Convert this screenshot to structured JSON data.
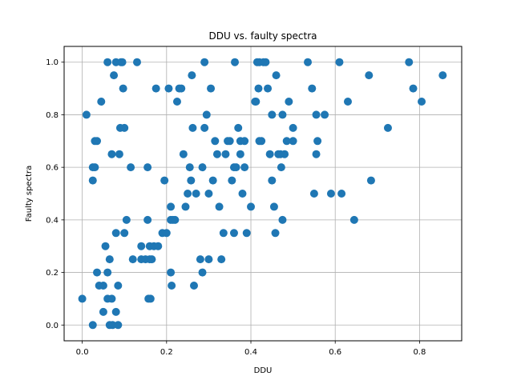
{
  "chart_data": {
    "type": "scatter",
    "title": "DDU vs. faulty spectra",
    "xlabel": "DDU",
    "ylabel": "Faulty spectra",
    "xlim": [
      -0.043,
      0.9
    ],
    "ylim": [
      -0.06,
      1.06
    ],
    "xticks": [
      0.0,
      0.2,
      0.4,
      0.6,
      0.8
    ],
    "yticks": [
      0.0,
      0.2,
      0.4,
      0.6,
      0.8,
      1.0
    ],
    "xtick_labels": [
      "0.0",
      "0.2",
      "0.4",
      "0.6",
      "0.8"
    ],
    "ytick_labels": [
      "0.0",
      "0.2",
      "0.4",
      "0.6",
      "0.8",
      "1.0"
    ],
    "grid": true,
    "marker_color": "#1f77b4",
    "points": [
      [
        0.0,
        0.1
      ],
      [
        0.01,
        0.8
      ],
      [
        0.025,
        0.0
      ],
      [
        0.025,
        0.55
      ],
      [
        0.025,
        0.6
      ],
      [
        0.03,
        0.6
      ],
      [
        0.03,
        0.7
      ],
      [
        0.035,
        0.7
      ],
      [
        0.035,
        0.2
      ],
      [
        0.04,
        0.15
      ],
      [
        0.045,
        0.85
      ],
      [
        0.05,
        0.15
      ],
      [
        0.05,
        0.05
      ],
      [
        0.055,
        0.3
      ],
      [
        0.06,
        0.2
      ],
      [
        0.06,
        0.1
      ],
      [
        0.06,
        1.0
      ],
      [
        0.065,
        0.0
      ],
      [
        0.065,
        0.25
      ],
      [
        0.07,
        0.65
      ],
      [
        0.07,
        0.1
      ],
      [
        0.072,
        0.0
      ],
      [
        0.075,
        0.95
      ],
      [
        0.08,
        0.35
      ],
      [
        0.08,
        0.05
      ],
      [
        0.08,
        1.0
      ],
      [
        0.085,
        0.0
      ],
      [
        0.085,
        0.15
      ],
      [
        0.088,
        0.65
      ],
      [
        0.09,
        0.75
      ],
      [
        0.092,
        1.0
      ],
      [
        0.095,
        1.0
      ],
      [
        0.097,
        0.9
      ],
      [
        0.1,
        0.75
      ],
      [
        0.1,
        0.35
      ],
      [
        0.105,
        0.4
      ],
      [
        0.115,
        0.6
      ],
      [
        0.12,
        0.25
      ],
      [
        0.13,
        1.0
      ],
      [
        0.14,
        0.25
      ],
      [
        0.14,
        0.3
      ],
      [
        0.15,
        0.25
      ],
      [
        0.155,
        0.6
      ],
      [
        0.155,
        0.4
      ],
      [
        0.157,
        0.1
      ],
      [
        0.16,
        0.3
      ],
      [
        0.16,
        0.25
      ],
      [
        0.162,
        0.1
      ],
      [
        0.165,
        0.25
      ],
      [
        0.17,
        0.3
      ],
      [
        0.175,
        0.9
      ],
      [
        0.18,
        0.3
      ],
      [
        0.19,
        0.35
      ],
      [
        0.195,
        0.55
      ],
      [
        0.2,
        0.35
      ],
      [
        0.205,
        0.9
      ],
      [
        0.21,
        0.4
      ],
      [
        0.21,
        0.45
      ],
      [
        0.21,
        0.2
      ],
      [
        0.212,
        0.15
      ],
      [
        0.215,
        0.4
      ],
      [
        0.22,
        0.4
      ],
      [
        0.225,
        0.85
      ],
      [
        0.23,
        0.9
      ],
      [
        0.235,
        0.9
      ],
      [
        0.24,
        0.65
      ],
      [
        0.245,
        0.45
      ],
      [
        0.25,
        0.5
      ],
      [
        0.255,
        0.6
      ],
      [
        0.258,
        0.55
      ],
      [
        0.26,
        0.95
      ],
      [
        0.262,
        0.75
      ],
      [
        0.265,
        0.15
      ],
      [
        0.27,
        0.5
      ],
      [
        0.28,
        0.25
      ],
      [
        0.285,
        0.2
      ],
      [
        0.285,
        0.6
      ],
      [
        0.29,
        1.0
      ],
      [
        0.29,
        0.75
      ],
      [
        0.295,
        0.8
      ],
      [
        0.3,
        0.5
      ],
      [
        0.3,
        0.25
      ],
      [
        0.305,
        0.9
      ],
      [
        0.31,
        0.55
      ],
      [
        0.315,
        0.7
      ],
      [
        0.32,
        0.65
      ],
      [
        0.325,
        0.45
      ],
      [
        0.33,
        0.25
      ],
      [
        0.335,
        0.35
      ],
      [
        0.34,
        0.65
      ],
      [
        0.345,
        0.7
      ],
      [
        0.35,
        0.7
      ],
      [
        0.355,
        0.55
      ],
      [
        0.36,
        0.35
      ],
      [
        0.36,
        0.6
      ],
      [
        0.362,
        1.0
      ],
      [
        0.365,
        0.6
      ],
      [
        0.37,
        0.75
      ],
      [
        0.375,
        0.7
      ],
      [
        0.375,
        0.65
      ],
      [
        0.38,
        0.5
      ],
      [
        0.385,
        0.6
      ],
      [
        0.385,
        0.7
      ],
      [
        0.39,
        0.35
      ],
      [
        0.4,
        0.45
      ],
      [
        0.41,
        0.85
      ],
      [
        0.412,
        0.85
      ],
      [
        0.415,
        1.0
      ],
      [
        0.418,
        0.9
      ],
      [
        0.42,
        0.7
      ],
      [
        0.42,
        1.0
      ],
      [
        0.425,
        0.7
      ],
      [
        0.43,
        1.0
      ],
      [
        0.435,
        1.0
      ],
      [
        0.44,
        0.9
      ],
      [
        0.445,
        0.65
      ],
      [
        0.45,
        0.55
      ],
      [
        0.45,
        0.8
      ],
      [
        0.455,
        0.45
      ],
      [
        0.458,
        0.35
      ],
      [
        0.46,
        0.95
      ],
      [
        0.465,
        0.65
      ],
      [
        0.47,
        0.65
      ],
      [
        0.472,
        0.6
      ],
      [
        0.475,
        0.4
      ],
      [
        0.475,
        0.8
      ],
      [
        0.48,
        0.65
      ],
      [
        0.485,
        0.7
      ],
      [
        0.49,
        0.85
      ],
      [
        0.5,
        0.75
      ],
      [
        0.5,
        0.7
      ],
      [
        0.535,
        1.0
      ],
      [
        0.545,
        0.9
      ],
      [
        0.55,
        0.5
      ],
      [
        0.555,
        0.8
      ],
      [
        0.555,
        0.65
      ],
      [
        0.558,
        0.7
      ],
      [
        0.575,
        0.8
      ],
      [
        0.59,
        0.5
      ],
      [
        0.61,
        1.0
      ],
      [
        0.615,
        0.5
      ],
      [
        0.63,
        0.85
      ],
      [
        0.645,
        0.4
      ],
      [
        0.68,
        0.95
      ],
      [
        0.685,
        0.55
      ],
      [
        0.725,
        0.75
      ],
      [
        0.775,
        1.0
      ],
      [
        0.785,
        0.9
      ],
      [
        0.805,
        0.85
      ],
      [
        0.855,
        0.95
      ]
    ]
  }
}
